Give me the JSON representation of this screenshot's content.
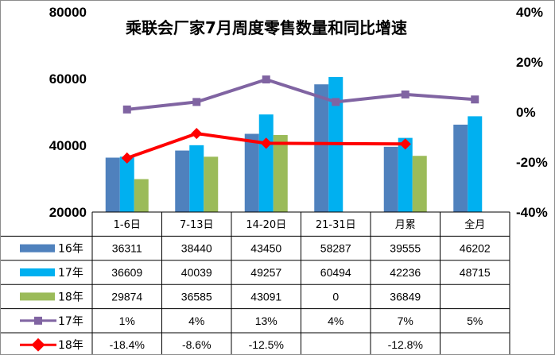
{
  "chart_data": {
    "type": "bar",
    "title": "乘联会厂家7月周度零售数量和同比增速",
    "categories": [
      "1-6日",
      "7-13日",
      "14-20日",
      "21-31日",
      "月累",
      "全月"
    ],
    "ylim": [
      20000,
      80000
    ],
    "y_ticks": [
      "80000",
      "60000",
      "40000",
      "20000"
    ],
    "y2lim": [
      -40,
      40
    ],
    "y2_ticks": [
      "40%",
      "20%",
      "0%",
      "-20%",
      "-40%"
    ],
    "grid": false,
    "legend": "data-table",
    "series": [
      {
        "name": "16年",
        "kind": "bar",
        "color": "#4f81bd",
        "values": [
          36311,
          38440,
          43450,
          58287,
          39555,
          46202
        ],
        "labels": [
          "36311",
          "38440",
          "43450",
          "58287",
          "39555",
          "46202"
        ]
      },
      {
        "name": "17年",
        "kind": "bar",
        "color": "#00b0f0",
        "values": [
          36609,
          40039,
          49257,
          60494,
          42236,
          48715
        ],
        "labels": [
          "36609",
          "40039",
          "49257",
          "60494",
          "42236",
          "48715"
        ]
      },
      {
        "name": "18年",
        "kind": "bar",
        "color": "#9bbb59",
        "values": [
          29874,
          36585,
          43091,
          0,
          36849,
          null
        ],
        "labels": [
          "29874",
          "36585",
          "43091",
          "0",
          "36849",
          ""
        ]
      },
      {
        "name": "17年",
        "kind": "line",
        "axis": "right",
        "color": "#8064a2",
        "values": [
          1,
          4,
          13,
          4,
          7,
          5
        ],
        "labels": [
          "1%",
          "4%",
          "13%",
          "4%",
          "7%",
          "5%"
        ]
      },
      {
        "name": "18年",
        "kind": "line",
        "axis": "right",
        "color": "#ff0000",
        "values": [
          -18.4,
          -8.6,
          -12.5,
          null,
          -12.8,
          null
        ],
        "labels": [
          "-18.4%",
          "-8.6%",
          "-12.5%",
          "",
          "-12.8%",
          ""
        ]
      }
    ]
  }
}
